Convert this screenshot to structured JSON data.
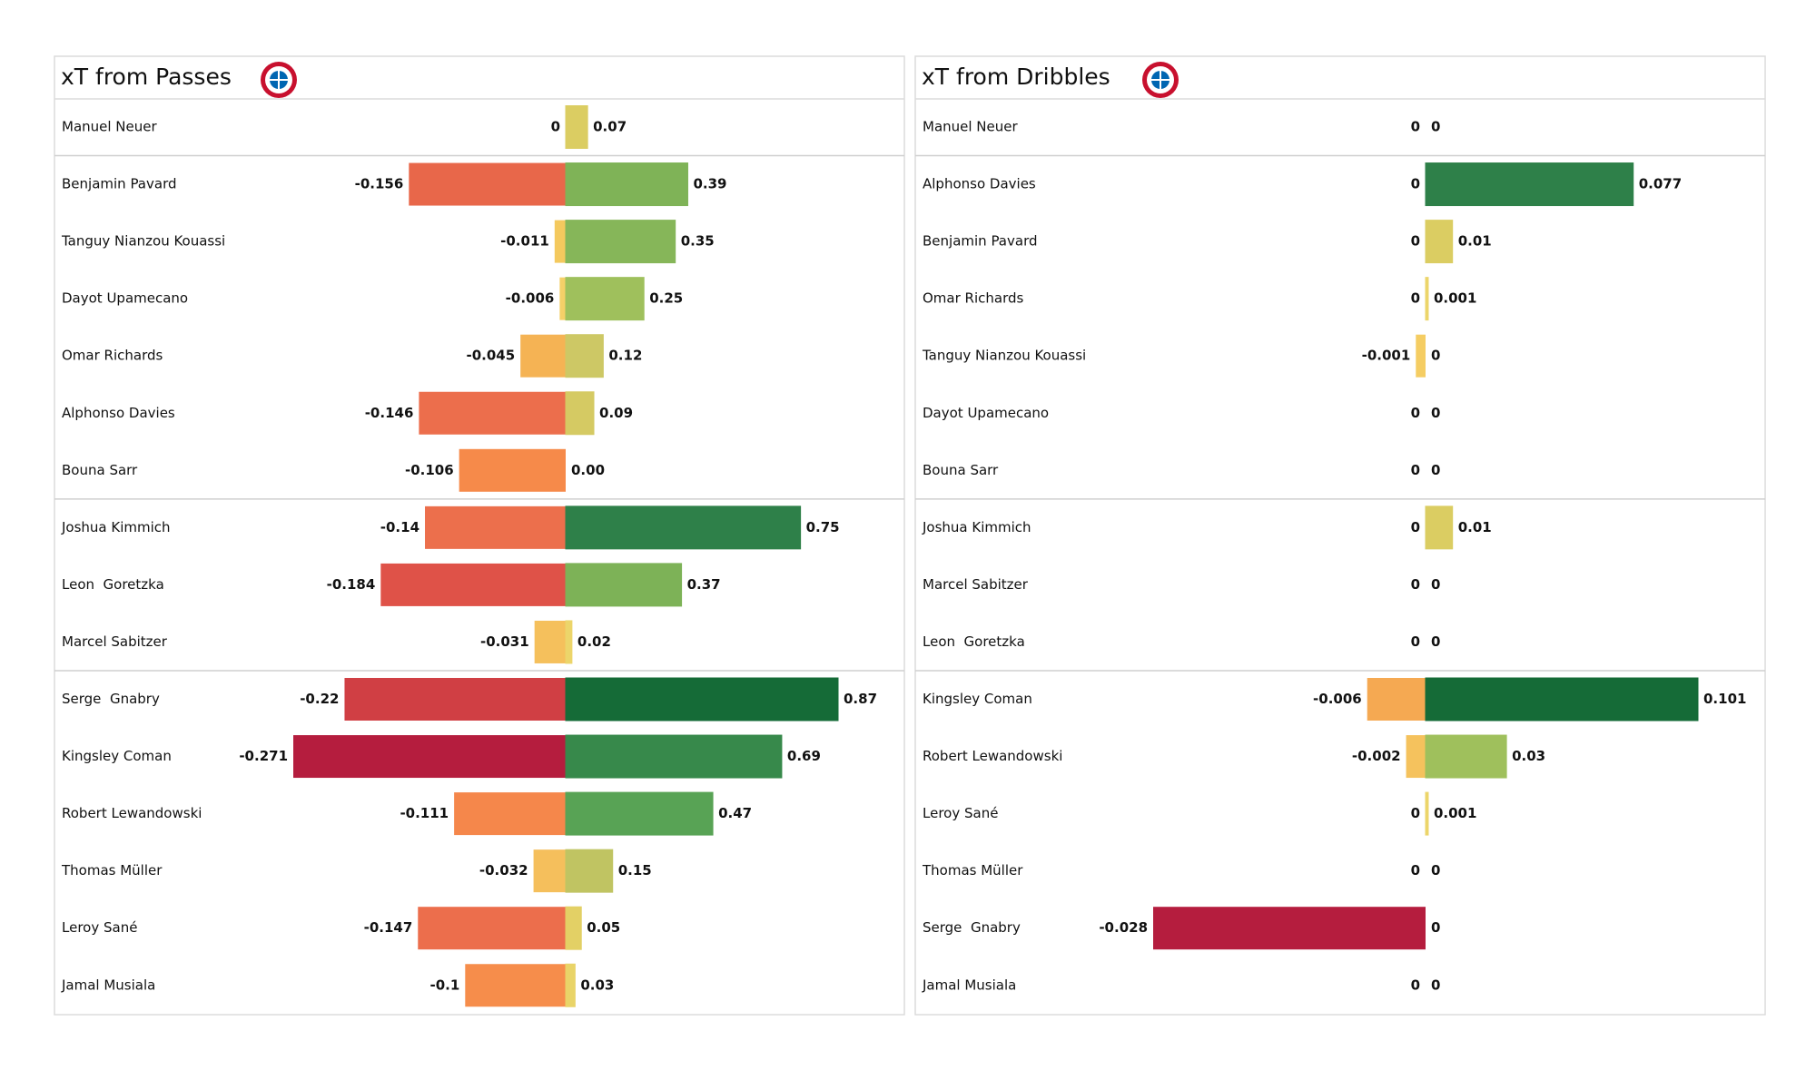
{
  "chart_data": [
    {
      "type": "diverging-bar",
      "title": "xT from Passes",
      "categories": [
        "Manuel Neuer",
        "Benjamin Pavard",
        "Tanguy Nianzou Kouassi",
        "Dayot Upamecano",
        "Omar Richards",
        "Alphonso Davies",
        "Bouna Sarr",
        "Joshua Kimmich",
        "Leon  Goretzka",
        "Marcel Sabitzer",
        "Serge  Gnabry",
        "Kingsley Coman",
        "Robert Lewandowski",
        "Thomas Müller",
        "Leroy Sané",
        "Jamal Musiala"
      ],
      "series": [
        {
          "values": [
            0,
            -0.156,
            -0.011,
            -0.006,
            -0.045,
            -0.146,
            -0.106,
            -0.14,
            -0.184,
            -0.031,
            -0.22,
            -0.271,
            -0.111,
            -0.032,
            -0.147,
            -0.1
          ],
          "colors": [
            "#f2d96c",
            "#e8674a",
            "#f4c95e",
            "#f5d068",
            "#f5b354",
            "#ec6e4c",
            "#f68a4a",
            "#ec6f4c",
            "#df5248",
            "#f5c05c",
            "#d03f44",
            "#b51d3e",
            "#f5874b",
            "#f5bf5c",
            "#ec6e4c",
            "#f68d4b"
          ]
        },
        {
          "values": [
            0.07,
            0.39,
            0.35,
            0.25,
            0.12,
            0.09,
            0,
            0.75,
            0.37,
            0.02,
            0.87,
            0.69,
            0.47,
            0.15,
            0.05,
            0.03
          ],
          "value_labels": [
            "0.07",
            "0.39",
            "0.35",
            "0.25",
            "0.12",
            "0.09",
            "0.00",
            "0.75",
            "0.37",
            "0.02",
            "0.87",
            "0.69",
            "0.47",
            "0.15",
            "0.05",
            "0.03"
          ],
          "colors": [
            "#dbcd62",
            "#7fb357",
            "#86b659",
            "#9fc05c",
            "#cdc865",
            "#d5ca63",
            "#f2d96c",
            "#2e8049",
            "#7db257",
            "#ecd56a",
            "#156b37",
            "#37894b",
            "#58a355",
            "#c0c462",
            "#e3d065",
            "#e9d468"
          ]
        }
      ]
    },
    {
      "type": "diverging-bar",
      "title": "xT from Dribbles",
      "categories": [
        "Manuel Neuer",
        "Alphonso Davies",
        "Benjamin Pavard",
        "Omar Richards",
        "Tanguy Nianzou Kouassi",
        "Dayot Upamecano",
        "Bouna Sarr",
        "Joshua Kimmich",
        "Marcel Sabitzer",
        "Leon  Goretzka",
        "Kingsley Coman",
        "Robert Lewandowski",
        "Leroy Sané",
        "Thomas Müller",
        "Serge  Gnabry",
        "Jamal Musiala"
      ],
      "series": [
        {
          "values": [
            0,
            0,
            0,
            0,
            -0.001,
            0,
            0,
            0,
            0,
            0,
            -0.006,
            -0.002,
            0,
            0,
            -0.028,
            0
          ],
          "colors": [
            "#e9d468",
            "#e9d468",
            "#e9d468",
            "#e9d468",
            "#f5cd63",
            "#e9d468",
            "#e9d468",
            "#e9d468",
            "#e9d468",
            "#e9d468",
            "#f5a952",
            "#f5c25d",
            "#e9d468",
            "#e9d468",
            "#b51d3e",
            "#e9d468"
          ]
        },
        {
          "values": [
            0,
            0.077,
            0.01,
            0.001,
            0,
            0,
            0,
            0.01,
            0,
            0,
            0.101,
            0.03,
            0.001,
            0,
            0,
            0
          ],
          "colors": [
            "#e9d468",
            "#2e8049",
            "#dbcd62",
            "#ecd56a",
            "#e9d468",
            "#e9d468",
            "#e9d468",
            "#dbcd62",
            "#e9d468",
            "#e9d468",
            "#156b37",
            "#9fc05c",
            "#ecd56a",
            "#e9d468",
            "#e9d468",
            "#e9d468"
          ]
        }
      ]
    }
  ]
}
